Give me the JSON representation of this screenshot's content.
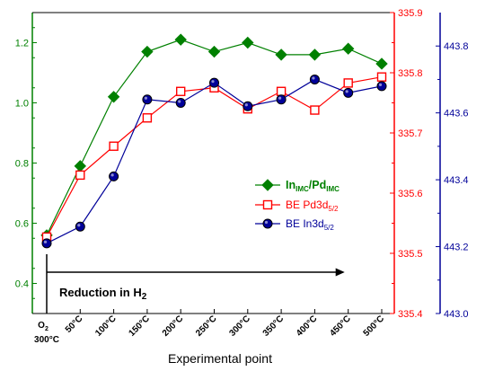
{
  "chart_data": {
    "type": "line",
    "xlabel": "Experimental point",
    "categories": [
      "O2 300°C",
      "50°C",
      "100°C",
      "150°C",
      "200°C",
      "250°C",
      "300°C",
      "350°C",
      "400°C",
      "450°C",
      "500°C"
    ],
    "category_lines": [
      [
        "O",
        "2",
        "300°C"
      ],
      [
        "50°C"
      ],
      [
        "100°C"
      ],
      [
        "150°C"
      ],
      [
        "200°C"
      ],
      [
        "250°C"
      ],
      [
        "300°C"
      ],
      [
        "350°C"
      ],
      [
        "400°C"
      ],
      [
        "450°C"
      ],
      [
        "500°C"
      ]
    ],
    "axes": {
      "left": {
        "ticks": [
          "0.4",
          "0.6",
          "0.8",
          "1.0",
          "1.2"
        ],
        "min": 0.3,
        "max": 1.3,
        "color": "#008000"
      },
      "right1": {
        "ticks": [
          "335.4",
          "335.5",
          "335.6",
          "335.7",
          "335.8",
          "335.9"
        ],
        "min": 335.4,
        "max": 335.9,
        "color": "#ff0000"
      },
      "right2": {
        "ticks": [
          "443.0",
          "443.2",
          "443.4",
          "443.6",
          "443.8"
        ],
        "min": 443.0,
        "max": 443.9,
        "color": "#000099"
      }
    },
    "series": [
      {
        "name": "In_IMC/Pd_IMC",
        "legend": {
          "main1": "In",
          "sub1": "IMC",
          "main2": "/Pd",
          "sub2": "IMC"
        },
        "axis": "left",
        "color": "#008000",
        "marker": "diamond",
        "values": [
          0.56,
          0.79,
          1.02,
          1.17,
          1.21,
          1.17,
          1.2,
          1.16,
          1.16,
          1.18,
          1.13
        ]
      },
      {
        "name": "BE Pd3d5/2",
        "legend": {
          "main1": "BE Pd3d",
          "sub1": "5/2"
        },
        "axis": "right1",
        "color": "#ff0000",
        "marker": "square-open",
        "values": [
          335.527,
          335.63,
          335.678,
          335.725,
          335.769,
          335.775,
          335.74,
          335.769,
          335.738,
          335.783,
          335.793
        ]
      },
      {
        "name": "BE In3d5/2",
        "legend": {
          "main1": "BE In3d",
          "sub1": "5/2"
        },
        "axis": "right2",
        "color": "#000099",
        "marker": "circle",
        "values": [
          443.21,
          443.26,
          443.41,
          443.64,
          443.63,
          443.69,
          443.62,
          443.64,
          443.7,
          443.66,
          443.68
        ]
      }
    ],
    "annotation": {
      "main": "Reduction in H",
      "sub": "2"
    },
    "grid": false,
    "legend_position": "right-middle"
  }
}
